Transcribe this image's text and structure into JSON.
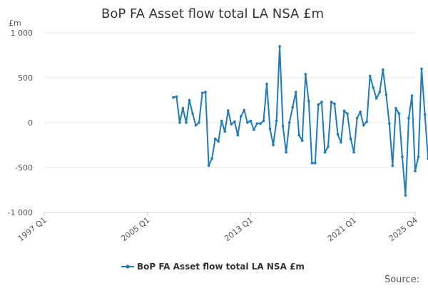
{
  "chart_data": {
    "type": "line",
    "title": "BoP FA Asset flow total LA NSA £m",
    "y_unit_label": "£m",
    "ylim": [
      -1000,
      1000
    ],
    "y_ticks": [
      1000,
      500,
      0,
      -500,
      -1000
    ],
    "y_tick_labels": [
      "1 000",
      "500",
      "0",
      "-500",
      "-1 000"
    ],
    "x_tick_labels": [
      "1997 Q1",
      "2005 Q1",
      "2013 Q1",
      "2021 Q1",
      "2025 Q4"
    ],
    "x_start_label": "1997 Q1",
    "x_end_label": "2025 Q4",
    "grid": true,
    "legend_position": "bottom-center",
    "series": [
      {
        "name": "BoP FA Asset flow total LA NSA £m",
        "color": "#1f7ab8",
        "values": [
          280,
          290,
          0,
          160,
          0,
          250,
          100,
          -30,
          0,
          330,
          340,
          -480,
          -400,
          -180,
          -210,
          20,
          -100,
          135,
          -20,
          10,
          -140,
          70,
          140,
          0,
          20,
          -80,
          -10,
          -10,
          20,
          430,
          -70,
          -250,
          20,
          850,
          -40,
          -330,
          0,
          170,
          340,
          -140,
          -200,
          540,
          240,
          -450,
          -450,
          200,
          230,
          -330,
          -270,
          230,
          210,
          -130,
          -220,
          130,
          100,
          -180,
          -330,
          50,
          120,
          -30,
          10,
          520,
          390,
          270,
          340,
          590,
          310,
          -10,
          -480,
          160,
          100,
          -380,
          -810,
          50,
          300,
          -540,
          -380,
          600,
          90,
          -400
        ]
      }
    ],
    "source_label": "Source:"
  }
}
